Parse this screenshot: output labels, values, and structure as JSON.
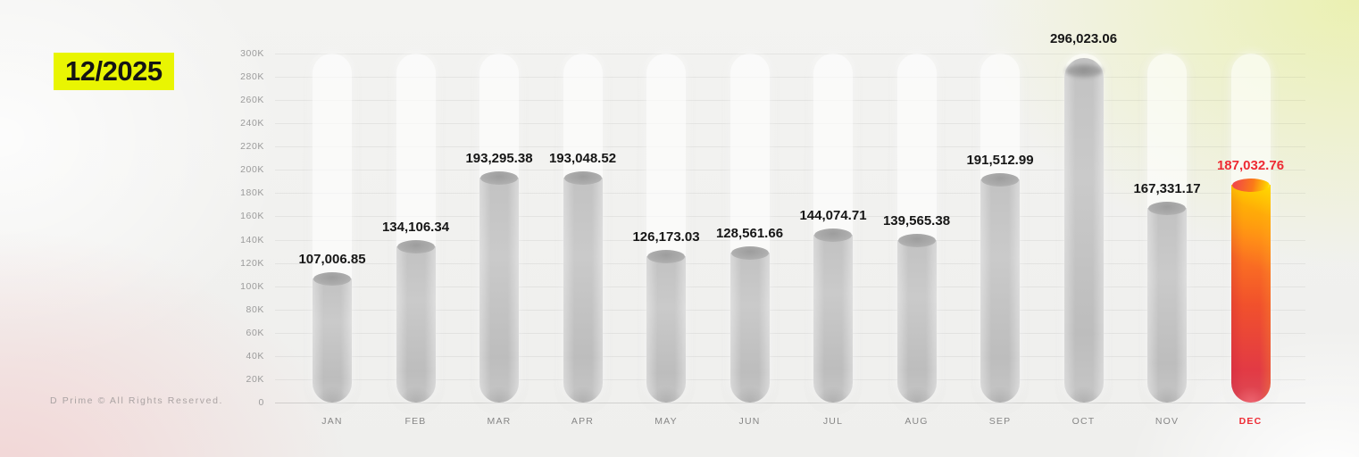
{
  "header": {
    "period": "12/2025",
    "highlight_bg": "#e9f502"
  },
  "footer": {
    "text": "D Prime © All Rights Reserved."
  },
  "chart_data": {
    "type": "bar",
    "title": "12/2025",
    "categories": [
      "JAN",
      "FEB",
      "MAR",
      "APR",
      "MAY",
      "JUN",
      "JUL",
      "AUG",
      "SEP",
      "OCT",
      "NOV",
      "DEC"
    ],
    "values": [
      107006.85,
      134106.34,
      193295.38,
      193048.52,
      126173.03,
      128561.66,
      144074.71,
      139565.38,
      191512.99,
      296023.06,
      167331.17,
      187032.76
    ],
    "value_labels": [
      "107,006.85",
      "134,106.34",
      "193,295.38",
      "193,048.52",
      "126,173.03",
      "128,561.66",
      "144,074.71",
      "139,565.38",
      "191,512.99",
      "296,023.06",
      "167,331.17",
      "187,032.76"
    ],
    "xlabel": "",
    "ylabel": "",
    "ylim": [
      0,
      300000
    ],
    "ytick_step": 20000,
    "ytick_labels": [
      "0",
      "20K",
      "40K",
      "60K",
      "80K",
      "100K",
      "120K",
      "140K",
      "160K",
      "180K",
      "200K",
      "220K",
      "240K",
      "260K",
      "280K",
      "300K"
    ],
    "grid": true,
    "legend": "none",
    "highlight_index": 11,
    "colors": {
      "bar_gray": "#c3c3c3",
      "track_white": "rgba(255,255,255,0.62)",
      "accent_red": "#ee2a33",
      "highlight_gradient": [
        "#ffae00",
        "#ff7e1d",
        "#f1512c",
        "#e23a44"
      ],
      "title_bg_yellow": "#e9f502"
    }
  }
}
